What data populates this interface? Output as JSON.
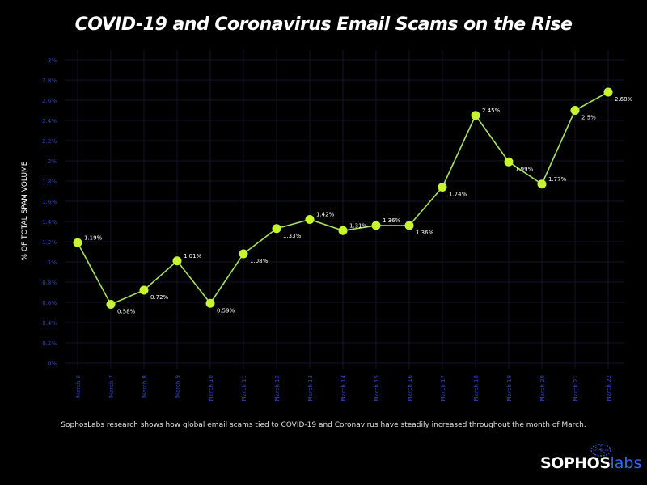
{
  "chart_data": {
    "type": "line",
    "title": "COVID-19 and Coronavirus Email Scams on the Rise",
    "ylabel": "% OF TOTAL SPAM VOLUME",
    "xlabel": "",
    "ylim": [
      0,
      3
    ],
    "yticks": [
      "0%",
      "0.2%",
      "0.4%",
      "0.6%",
      "0.8%",
      "1%",
      "1.2%",
      "1.4%",
      "1.6%",
      "1.8%",
      "2%",
      "2.2%",
      "2.4%",
      "2.6%",
      "2.8%",
      "3%"
    ],
    "grid": true,
    "categories": [
      "March 6",
      "March 7",
      "March 8",
      "March 9",
      "March 10",
      "March 11",
      "March 12",
      "March 13",
      "March 14",
      "March 15",
      "March 16",
      "March 17",
      "March 18",
      "March 19",
      "March 20",
      "March 21",
      "March 22"
    ],
    "values": [
      1.19,
      0.58,
      0.72,
      1.01,
      0.59,
      1.08,
      1.33,
      1.42,
      1.31,
      1.36,
      1.36,
      1.74,
      2.45,
      1.99,
      1.77,
      2.5,
      2.68
    ],
    "data_labels": [
      "1.19%",
      "0.58%",
      "0.72%",
      "1.01%",
      "0.59%",
      "1.08%",
      "1.33%",
      "1.42%",
      "1.31%",
      "1.36%",
      "1.36%",
      "1.74%",
      "2.45%",
      "1.99%",
      "1.77%",
      "2.5%",
      "2.68%"
    ],
    "colors": {
      "line": "#a6e35c",
      "marker": "#c8f531",
      "tick": "#3347c4",
      "grid": "#141428",
      "background": "#000000"
    }
  },
  "caption": "SophosLabs research shows how global email scams tied to COVID-19 and Coronavirus have steadily increased throughout the month of March.",
  "logo": {
    "part1": "SOPHOS",
    "part2": "labs"
  }
}
